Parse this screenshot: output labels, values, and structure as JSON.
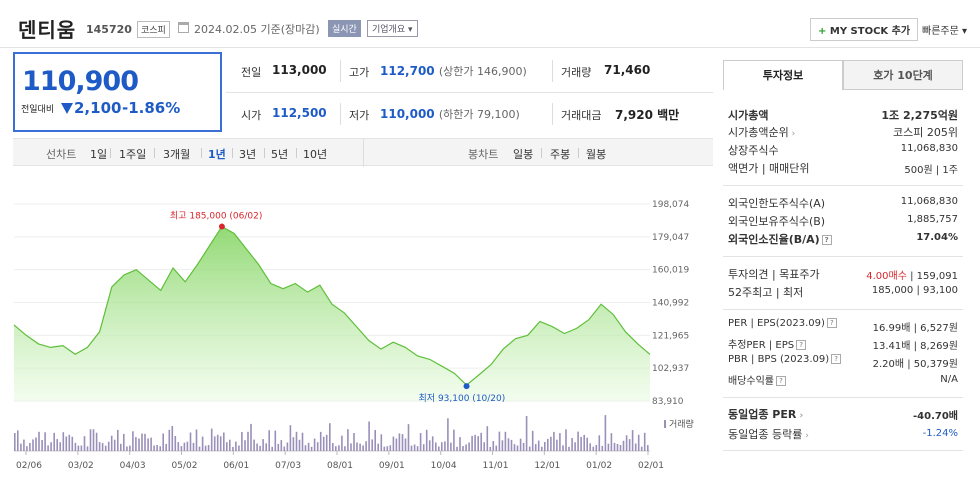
{
  "header": {
    "stock_name": "덴티움",
    "stock_code": "145720",
    "market": "코스피",
    "date": "2024.02.05 기준(장마감)",
    "realtime_label": "실시간",
    "company_info_label": "기업개요",
    "my_stock_label": "MY STOCK 추가",
    "quick_order_label": "빠른주문"
  },
  "price": {
    "current": "110,900",
    "change_label": "전일대비",
    "change": "2,100",
    "change_pct": "-1.86%"
  },
  "quote": {
    "prev_close_label": "전일",
    "prev_close": "113,000",
    "high_label": "고가",
    "high": "112,700",
    "high_limit": "(상한가 146,900)",
    "volume_label": "거래량",
    "volume": "71,460",
    "open_label": "시가",
    "open": "112,500",
    "low_label": "저가",
    "low": "110,000",
    "low_limit": "(하한가 79,100)",
    "amount_label": "거래대금",
    "amount": "7,920 백만"
  },
  "periods": {
    "line_chart_label": "선차트",
    "items": [
      "1일",
      "1주일",
      "3개월",
      "1년",
      "3년",
      "5년",
      "10년"
    ],
    "selected": "1년",
    "candle_label": "봉차트",
    "candle_items": [
      "일봉",
      "주봉",
      "월봉"
    ]
  },
  "chart_data": {
    "type": "area",
    "x_ticks": [
      "02/06",
      "03/02",
      "04/03",
      "05/02",
      "06/01",
      "07/03",
      "08/01",
      "09/01",
      "10/04",
      "11/01",
      "12/01",
      "01/02",
      "02/01"
    ],
    "y_ticks": [
      "198,074",
      "179,047",
      "160,019",
      "140,992",
      "121,965",
      "102,937",
      "83,910"
    ],
    "ylim": [
      83910,
      198074
    ],
    "series": [
      {
        "x": [
          "02/06",
          "02/13",
          "02/20",
          "02/27",
          "03/06",
          "03/13",
          "03/20",
          "03/27",
          "04/03",
          "04/10",
          "04/17",
          "04/24",
          "05/02",
          "05/09",
          "05/16",
          "05/23",
          "05/30",
          "06/02",
          "06/09",
          "06/16",
          "06/23",
          "06/30",
          "07/07",
          "07/14",
          "07/21",
          "07/28",
          "08/04",
          "08/11",
          "08/18",
          "08/25",
          "09/01",
          "09/08",
          "09/15",
          "09/22",
          "09/29",
          "10/06",
          "10/13",
          "10/20",
          "10/27",
          "11/03",
          "11/10",
          "11/17",
          "11/24",
          "12/01",
          "12/08",
          "12/15",
          "12/22",
          "12/29",
          "01/05",
          "01/12",
          "01/19",
          "01/26",
          "02/05"
        ],
        "values": [
          128000,
          122000,
          117000,
          115000,
          116000,
          111000,
          115000,
          124000,
          150000,
          157000,
          160000,
          154000,
          148000,
          161000,
          153000,
          163000,
          174000,
          185000,
          181000,
          172000,
          163000,
          152000,
          149000,
          152000,
          147000,
          151000,
          140000,
          135000,
          127000,
          119000,
          114000,
          118000,
          115000,
          110000,
          108000,
          104000,
          100000,
          93100,
          99000,
          105000,
          114000,
          120000,
          122000,
          130000,
          127000,
          123000,
          126000,
          131000,
          140000,
          134000,
          124000,
          117000,
          110900
        ]
      }
    ],
    "high_annotation": "최고 185,000 (06/02)",
    "low_annotation": "최저 93,100 (10/20)",
    "volume_label": "거래량"
  },
  "info_panel": {
    "tabs": [
      "투자정보",
      "호가 10단계"
    ],
    "rows": [
      {
        "label": "시가총액",
        "value": "1조 2,275억원"
      },
      {
        "label": "시가총액순위",
        "value": "코스피 205위"
      },
      {
        "label": "상장주식수",
        "value": "11,068,830"
      },
      {
        "label": "액면가 | 매매단위",
        "value": "500원 | 1주"
      },
      {
        "label": "외국인한도주식수(A)",
        "value": "11,068,830"
      },
      {
        "label": "외국인보유주식수(B)",
        "value": "1,885,757"
      },
      {
        "label": "외국인소진율(B/A)",
        "value": "17.04%"
      },
      {
        "label": "투자의견 | 목표주가",
        "value_a": "4.00매수",
        "value_b": "| 159,091"
      },
      {
        "label": "52주최고 | 최저",
        "value": "185,000 | 93,100"
      },
      {
        "label": "PER | EPS(2023.09)",
        "value": "16.99배 | 6,527원"
      },
      {
        "label": "추정PER | EPS",
        "value": "13.41배 | 8,269원"
      },
      {
        "label": "PBR | BPS (2023.09)",
        "value": "2.20배 | 50,379원"
      },
      {
        "label": "배당수익률",
        "value": "N/A"
      },
      {
        "label": "동일업종 PER",
        "value": "-40.70배"
      },
      {
        "label": "동일업종 등락률",
        "value": "-1.24%"
      }
    ]
  },
  "colors": {
    "accent_blue": "#1e5bc6",
    "up_red": "#d9262c",
    "area_green": "#7fd35c",
    "volume_purple": "#9a8fb8"
  }
}
